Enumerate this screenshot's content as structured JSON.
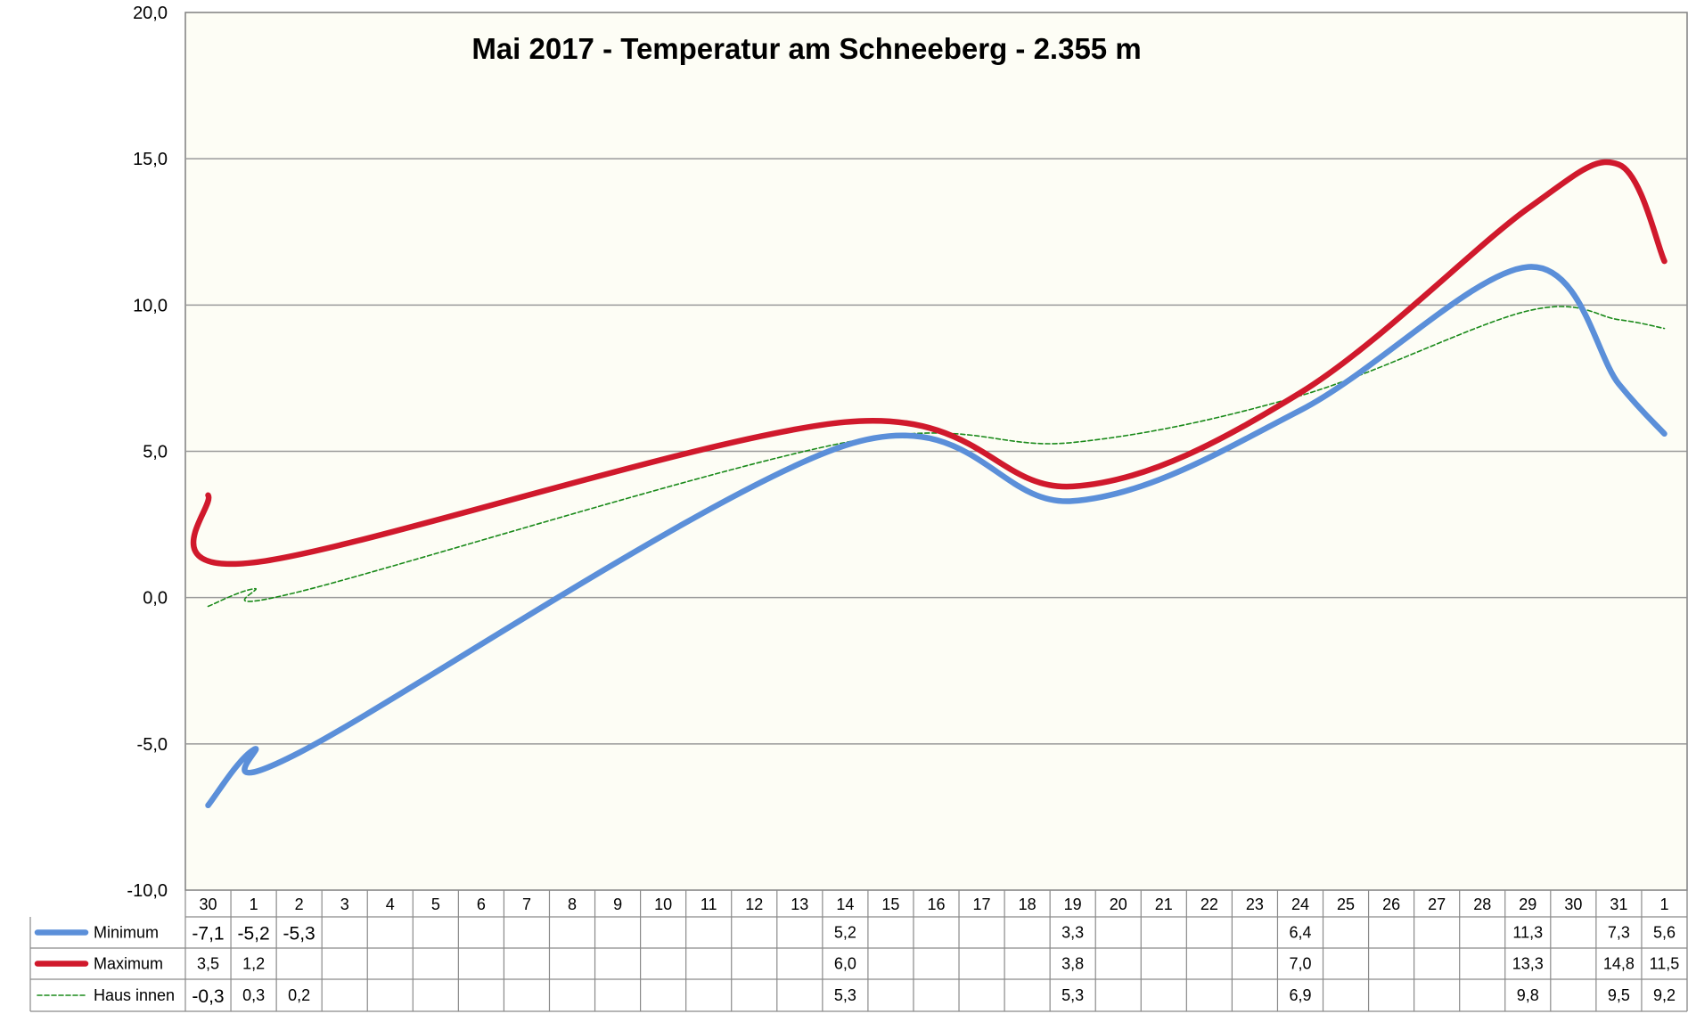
{
  "chart_data": {
    "type": "line",
    "title": "Mai 2017 - Temperatur am Schneeberg - 2.355 m",
    "ylim": [
      -10,
      20
    ],
    "yticks": [
      "20,0",
      "15,0",
      "10,0",
      "5,0",
      "0,0",
      "-5,0",
      "-10,0"
    ],
    "grid": true,
    "legend": "bottom-left data table",
    "categories": [
      "30",
      "1",
      "2",
      "3",
      "4",
      "5",
      "6",
      "7",
      "8",
      "9",
      "10",
      "11",
      "12",
      "13",
      "14",
      "15",
      "16",
      "17",
      "18",
      "19",
      "20",
      "21",
      "22",
      "23",
      "24",
      "25",
      "26",
      "27",
      "28",
      "29",
      "30",
      "31",
      "1"
    ],
    "series": [
      {
        "name": "Minimum",
        "color": "#5B8FD9",
        "style": "solid-thick",
        "values": [
          -7.1,
          -5.2,
          -5.3,
          null,
          null,
          null,
          null,
          null,
          null,
          null,
          null,
          null,
          null,
          null,
          5.2,
          null,
          null,
          null,
          null,
          3.3,
          null,
          null,
          null,
          null,
          6.4,
          null,
          null,
          null,
          null,
          11.3,
          null,
          7.3,
          5.6
        ],
        "labels": [
          "-7,1",
          "-5,2",
          "-5,3",
          "",
          "",
          "",
          "",
          "",
          "",
          "",
          "",
          "",
          "",
          "",
          "5,2",
          "",
          "",
          "",
          "",
          "3,3",
          "",
          "",
          "",
          "",
          "6,4",
          "",
          "",
          "",
          "",
          "11,3",
          "",
          "7,3",
          "5,6"
        ]
      },
      {
        "name": "Maximum",
        "color": "#D0192C",
        "style": "solid-thick",
        "values": [
          3.5,
          1.2,
          null,
          null,
          null,
          null,
          null,
          null,
          null,
          null,
          null,
          null,
          null,
          null,
          6.0,
          null,
          null,
          null,
          null,
          3.8,
          null,
          null,
          null,
          null,
          7.0,
          null,
          null,
          null,
          null,
          13.3,
          null,
          14.8,
          11.5
        ],
        "labels": [
          "3,5",
          "1,2",
          "",
          "",
          "",
          "",
          "",
          "",
          "",
          "",
          "",
          "",
          "",
          "",
          "6,0",
          "",
          "",
          "",
          "",
          "3,8",
          "",
          "",
          "",
          "",
          "7,0",
          "",
          "",
          "",
          "",
          "13,3",
          "",
          "14,8",
          "11,5"
        ]
      },
      {
        "name": "Haus innen",
        "color": "#1A8A1A",
        "style": "dashed-thin",
        "values": [
          -0.3,
          0.3,
          0.2,
          null,
          null,
          null,
          null,
          null,
          null,
          null,
          null,
          null,
          null,
          null,
          5.3,
          null,
          null,
          null,
          null,
          5.3,
          null,
          null,
          null,
          null,
          6.9,
          null,
          null,
          null,
          null,
          9.8,
          null,
          9.5,
          9.2
        ],
        "labels": [
          "-0,3",
          "0,3",
          "0,2",
          "",
          "",
          "",
          "",
          "",
          "",
          "",
          "",
          "",
          "",
          "",
          "5,3",
          "",
          "",
          "",
          "",
          "5,3",
          "",
          "",
          "",
          "",
          "6,9",
          "",
          "",
          "",
          "",
          "9,8",
          "",
          "9,5",
          "9,2"
        ]
      }
    ],
    "colors": {
      "plot_background": "#FDFDF5",
      "grid": "#9A9A9A",
      "border": "#7F7F7F"
    }
  }
}
